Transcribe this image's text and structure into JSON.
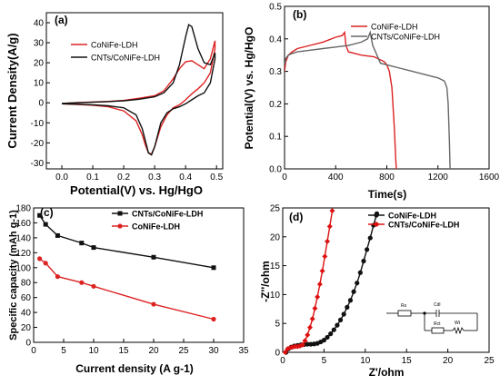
{
  "chart_data": [
    {
      "panel_label": "(a)",
      "type": "line",
      "xlabel": "Potential(V) vs. Hg/HgO",
      "ylabel": "Current Density(A/g)",
      "xlim": [
        -0.05,
        0.52
      ],
      "ylim": [
        -33,
        45
      ],
      "xticks": [
        "0.0",
        "0.1",
        "0.2",
        "0.3",
        "0.4",
        "0.5"
      ],
      "yticks": [
        "-30",
        "-20",
        "-10",
        "0",
        "10",
        "20",
        "30",
        "40"
      ],
      "legend_position": "top-left",
      "series": [
        {
          "name": "CoNiFe-LDH",
          "color": "#dd2222",
          "x": [
            0.0,
            0.05,
            0.1,
            0.15,
            0.2,
            0.25,
            0.3,
            0.33,
            0.36,
            0.38,
            0.4,
            0.42,
            0.44,
            0.46,
            0.48,
            0.495,
            0.495,
            0.48,
            0.46,
            0.44,
            0.42,
            0.4,
            0.38,
            0.36,
            0.34,
            0.32,
            0.31,
            0.3,
            0.29,
            0.28,
            0.27,
            0.26,
            0.24,
            0.2,
            0.15,
            0.1,
            0.05,
            0.0
          ],
          "y": [
            -0.3,
            0.1,
            0.4,
            0.7,
            1.2,
            2.3,
            3.5,
            6.0,
            12.0,
            17.0,
            20.5,
            21.0,
            19.0,
            17.0,
            22.0,
            31.0,
            27.0,
            15.0,
            10.0,
            7.0,
            4.5,
            1.5,
            -1.0,
            -2.5,
            -6.0,
            -12.0,
            -17.0,
            -22.0,
            -25.5,
            -25.0,
            -21.0,
            -16.0,
            -9.0,
            -4.0,
            -2.0,
            -1.2,
            -0.8,
            -0.5
          ]
        },
        {
          "name": "CNTs/CoNiFe-LDH",
          "color": "#111111",
          "x": [
            0.0,
            0.05,
            0.1,
            0.15,
            0.2,
            0.25,
            0.3,
            0.33,
            0.36,
            0.38,
            0.4,
            0.41,
            0.42,
            0.44,
            0.46,
            0.48,
            0.495,
            0.495,
            0.48,
            0.46,
            0.44,
            0.42,
            0.4,
            0.38,
            0.36,
            0.34,
            0.32,
            0.31,
            0.3,
            0.29,
            0.28,
            0.27,
            0.26,
            0.24,
            0.2,
            0.15,
            0.1,
            0.05,
            0.0
          ],
          "y": [
            -0.3,
            0.0,
            0.3,
            0.6,
            1.0,
            1.8,
            3.0,
            5.0,
            10.0,
            19.0,
            33.0,
            39.0,
            38.0,
            27.0,
            20.0,
            19.0,
            25.0,
            22.0,
            10.0,
            5.0,
            3.5,
            1.5,
            -0.5,
            -2.0,
            -3.0,
            -5.0,
            -10.0,
            -16.0,
            -22.0,
            -26.0,
            -25.0,
            -19.0,
            -13.0,
            -6.0,
            -2.5,
            -1.5,
            -1.0,
            -0.7,
            -0.5
          ]
        }
      ]
    },
    {
      "panel_label": "(b)",
      "type": "line",
      "xlabel": "Time(s)",
      "ylabel": "Potential(V) vs. Hg/HgO",
      "xlim": [
        0,
        1600
      ],
      "ylim": [
        0,
        0.5
      ],
      "xticks": [
        "0",
        "400",
        "800",
        "1200",
        "1600"
      ],
      "yticks": [
        "0.0",
        "0.1",
        "0.2",
        "0.3",
        "0.4",
        "0.5"
      ],
      "legend_position": "top-right",
      "series": [
        {
          "name": "CoNiFe-LDH",
          "color": "#dd2222",
          "x": [
            0,
            10,
            30,
            60,
            100,
            200,
            300,
            400,
            450,
            470,
            480,
            500,
            600,
            700,
            780,
            800,
            820,
            840,
            860,
            870,
            875
          ],
          "y": [
            0.3,
            0.33,
            0.35,
            0.36,
            0.37,
            0.38,
            0.39,
            0.405,
            0.41,
            0.42,
            0.38,
            0.36,
            0.35,
            0.345,
            0.33,
            0.32,
            0.3,
            0.25,
            0.12,
            0.03,
            0.0
          ]
        },
        {
          "name": "CNTs/CoNiFe-LDH",
          "color": "#666666",
          "x": [
            0,
            10,
            30,
            60,
            100,
            200,
            300,
            400,
            500,
            600,
            650,
            670,
            690,
            750,
            900,
            1000,
            1100,
            1200,
            1250,
            1270,
            1280,
            1290,
            1295
          ],
          "y": [
            0.32,
            0.34,
            0.35,
            0.355,
            0.36,
            0.365,
            0.37,
            0.375,
            0.38,
            0.39,
            0.4,
            0.42,
            0.38,
            0.325,
            0.31,
            0.3,
            0.29,
            0.28,
            0.27,
            0.25,
            0.2,
            0.08,
            0.0
          ]
        }
      ]
    },
    {
      "panel_label": "(c)",
      "type": "line",
      "xlabel": "Current density (A g-1)",
      "ylabel": "Specific capacity (mAh g-1)",
      "xlim": [
        0,
        35
      ],
      "ylim": [
        0,
        180
      ],
      "xticks": [
        "0",
        "5",
        "10",
        "15",
        "20",
        "25",
        "30",
        "35"
      ],
      "yticks": [
        "0",
        "20",
        "40",
        "60",
        "80",
        "100",
        "120",
        "140",
        "160",
        "180"
      ],
      "legend_position": "top-right",
      "series": [
        {
          "name": "CNTs/CoNiFe-LDH",
          "color": "#111111",
          "x": [
            1,
            2,
            4,
            8,
            10,
            20,
            30
          ],
          "y": [
            170,
            158,
            143,
            133,
            127,
            114,
            100
          ]
        },
        {
          "name": "CoNiFe-LDH",
          "color": "#dd2222",
          "x": [
            1,
            2,
            4,
            8,
            10,
            20,
            30
          ],
          "y": [
            112,
            106,
            88,
            80,
            75,
            51,
            31
          ]
        }
      ]
    },
    {
      "panel_label": "(d)",
      "type": "scatter",
      "xlabel": "Z'/ohm",
      "ylabel": "-Z''/ohm",
      "xlim": [
        0,
        25
      ],
      "ylim": [
        0,
        25
      ],
      "xticks": [
        "0",
        "5",
        "10",
        "15",
        "20",
        "25"
      ],
      "yticks": [
        "0",
        "5",
        "10",
        "15",
        "20",
        "25"
      ],
      "legend_position": "top-right",
      "inset_labels": [
        "Rs",
        "Cdl",
        "Rct",
        "Wt"
      ],
      "series": [
        {
          "name": "CoNiFe-LDH",
          "color": "#111111",
          "x": [
            0.4,
            0.7,
            1.0,
            1.4,
            1.8,
            2.2,
            2.6,
            3.0,
            3.4,
            3.8,
            4.2,
            4.6,
            5.0,
            5.4,
            5.8,
            6.2,
            6.6,
            7.0,
            7.4,
            7.8,
            8.2,
            8.6,
            9.0,
            9.4,
            9.8,
            10.2,
            10.6,
            11.0,
            11.4
          ],
          "y": [
            0.0,
            0.6,
            0.9,
            1.1,
            1.2,
            1.3,
            1.35,
            1.4,
            1.4,
            1.45,
            1.55,
            1.8,
            2.1,
            2.6,
            3.2,
            3.9,
            4.7,
            5.6,
            6.6,
            7.8,
            9.0,
            10.5,
            12.0,
            13.8,
            15.8,
            17.8,
            19.8,
            22.0,
            24.0
          ]
        },
        {
          "name": "CNTs/CoNiFe-LDH",
          "color": "#dd1111",
          "x": [
            0.3,
            0.6,
            0.9,
            1.2,
            1.5,
            1.8,
            2.1,
            2.4,
            2.7,
            3.0,
            3.3,
            3.6,
            3.9,
            4.2,
            4.5,
            4.8,
            5.1,
            5.4,
            5.7,
            6.0
          ],
          "y": [
            0.0,
            0.6,
            0.8,
            0.9,
            1.0,
            1.0,
            1.1,
            1.3,
            2.0,
            3.0,
            4.3,
            5.8,
            7.6,
            9.6,
            11.8,
            14.1,
            16.6,
            19.2,
            21.8,
            24.5
          ]
        }
      ]
    }
  ]
}
